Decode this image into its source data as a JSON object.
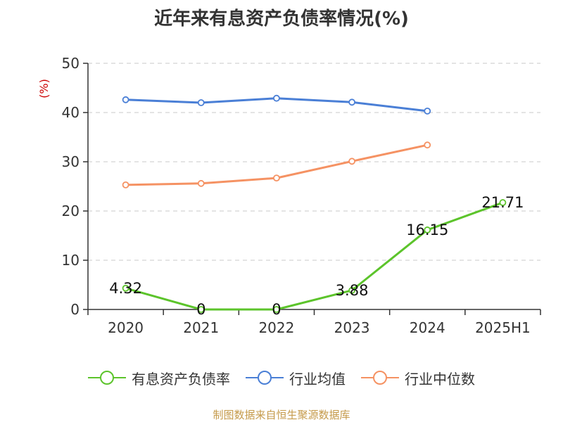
{
  "chart_data": {
    "type": "line",
    "title": "近年来有息资产负债率情况(%)",
    "ylabel": "(%)",
    "xlabel": "",
    "categories": [
      "2020",
      "2021",
      "2022",
      "2023",
      "2024",
      "2025H1"
    ],
    "ylim": [
      0,
      50
    ],
    "yticks": [
      0,
      10,
      20,
      30,
      40,
      50
    ],
    "grid": true,
    "legend_position": "bottom",
    "series": [
      {
        "name": "有息资产负债率",
        "color": "#5cc42b",
        "values": [
          4.32,
          0,
          0,
          3.88,
          16.15,
          21.71
        ],
        "labels": [
          "4.32",
          "0",
          "0",
          "3.88",
          "16.15",
          "21.71"
        ]
      },
      {
        "name": "行业均值",
        "color": "#4a7fd6",
        "values": [
          42.6,
          42.0,
          42.9,
          42.1,
          40.3,
          null
        ]
      },
      {
        "name": "行业中位数",
        "color": "#f59263",
        "values": [
          25.3,
          25.6,
          26.7,
          30.1,
          33.4,
          null
        ]
      }
    ]
  },
  "source_note": "制图数据来自恒生聚源数据库"
}
